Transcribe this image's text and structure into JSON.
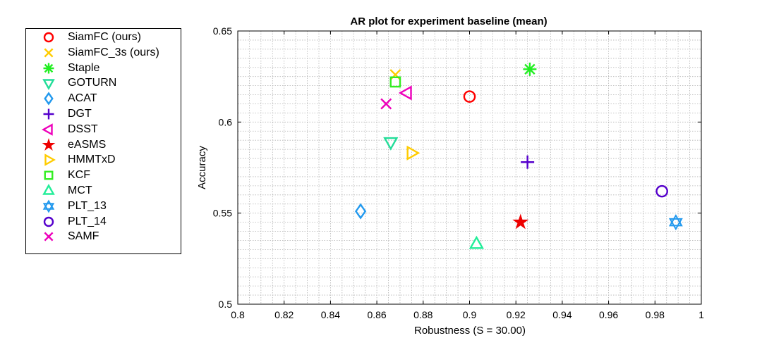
{
  "chart_data": {
    "type": "scatter",
    "title": "AR plot for experiment baseline (mean)",
    "xlabel": "Robustness (S = 30.00)",
    "ylabel": "Accuracy",
    "xlim": [
      0.8,
      1.0
    ],
    "ylim": [
      0.5,
      0.65
    ],
    "x_ticks": [
      "0.8",
      "0.82",
      "0.84",
      "0.86",
      "0.88",
      "0.9",
      "0.92",
      "0.94",
      "0.96",
      "0.98",
      "1"
    ],
    "y_ticks": [
      "0.5",
      "0.55",
      "0.6",
      "0.65"
    ],
    "grid": true,
    "legend_position": "outside-left",
    "series": [
      {
        "name": "SiamFC (ours)",
        "marker": "circle",
        "color": "#ff0000",
        "x": 0.9,
        "y": 0.614
      },
      {
        "name": "SiamFC_3s (ours)",
        "marker": "x",
        "color": "#ffcc00",
        "x": 0.868,
        "y": 0.626
      },
      {
        "name": "Staple",
        "marker": "asterisk",
        "color": "#22ee22",
        "x": 0.926,
        "y": 0.629
      },
      {
        "name": "GOTURN",
        "marker": "triangle-down",
        "color": "#22dd99",
        "x": 0.866,
        "y": 0.589
      },
      {
        "name": "ACAT",
        "marker": "diamond",
        "color": "#2299ee",
        "x": 0.853,
        "y": 0.551
      },
      {
        "name": "DGT",
        "marker": "plus",
        "color": "#5500cc",
        "x": 0.925,
        "y": 0.578
      },
      {
        "name": "DSST",
        "marker": "triangle-left",
        "color": "#ee00bb",
        "x": 0.873,
        "y": 0.616
      },
      {
        "name": "eASMS",
        "marker": "star",
        "color": "#ee0000",
        "x": 0.922,
        "y": 0.545
      },
      {
        "name": "HMMTxD",
        "marker": "triangle-right",
        "color": "#ffcc00",
        "x": 0.875,
        "y": 0.583
      },
      {
        "name": "KCF",
        "marker": "square",
        "color": "#33ee22",
        "x": 0.868,
        "y": 0.622
      },
      {
        "name": "MCT",
        "marker": "triangle-up",
        "color": "#22ee99",
        "x": 0.903,
        "y": 0.533
      },
      {
        "name": "PLT_13",
        "marker": "hexagram",
        "color": "#2299ee",
        "x": 0.989,
        "y": 0.545
      },
      {
        "name": "PLT_14",
        "marker": "circle",
        "color": "#5500cc",
        "x": 0.983,
        "y": 0.562
      },
      {
        "name": "SAMF",
        "marker": "x",
        "color": "#ee00bb",
        "x": 0.864,
        "y": 0.61
      }
    ]
  }
}
